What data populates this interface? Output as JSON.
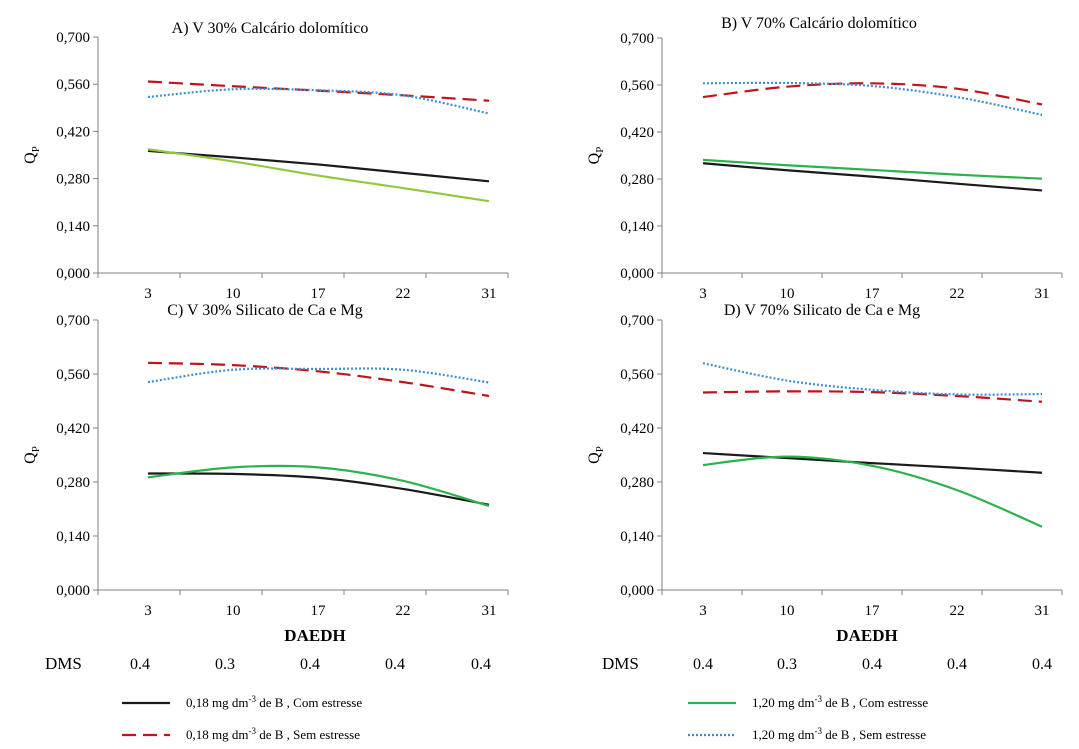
{
  "chart_data": [
    {
      "type": "line",
      "title": "A) V 30% Calcário dolomítico",
      "ylabel": "Q",
      "ylabel_sub": "P",
      "ylim": [
        0,
        0.7
      ],
      "yticks": [
        "0,000",
        "0,140",
        "0,280",
        "0,420",
        "0,560",
        "0,700"
      ],
      "categories": [
        "3",
        "10",
        "17",
        "22",
        "31"
      ],
      "series": [
        {
          "key": "b018_com",
          "values": [
            0.362,
            0.343,
            0.322,
            0.297,
            0.272
          ]
        },
        {
          "key": "b018_sem",
          "values": [
            0.568,
            0.554,
            0.541,
            0.527,
            0.511
          ]
        },
        {
          "key": "b120_com",
          "values": [
            0.367,
            0.331,
            0.289,
            0.252,
            0.213
          ]
        },
        {
          "key": "b120_sem",
          "values": [
            0.522,
            0.545,
            0.542,
            0.527,
            0.473
          ]
        }
      ]
    },
    {
      "type": "line",
      "title": "B) V 70% Calcário dolomítico",
      "ylabel": "Q",
      "ylabel_sub": "P",
      "ylim": [
        0,
        0.7
      ],
      "yticks": [
        "0,000",
        "0,140",
        "0,280",
        "0,420",
        "0,560",
        "0,700"
      ],
      "categories": [
        "3",
        "10",
        "17",
        "22",
        "31"
      ],
      "series": [
        {
          "key": "b018_com",
          "values": [
            0.327,
            0.306,
            0.287,
            0.266,
            0.246
          ]
        },
        {
          "key": "b018_sem",
          "values": [
            0.524,
            0.555,
            0.565,
            0.549,
            0.502
          ]
        },
        {
          "key": "b120_com",
          "values": [
            0.337,
            0.321,
            0.307,
            0.293,
            0.281
          ]
        },
        {
          "key": "b120_sem",
          "values": [
            0.565,
            0.566,
            0.557,
            0.524,
            0.471
          ]
        }
      ]
    },
    {
      "type": "line",
      "title": "C) V 30% Silicato de Ca e Mg",
      "ylabel": "Q",
      "ylabel_sub": "P",
      "ylim": [
        0,
        0.7
      ],
      "yticks": [
        "0,000",
        "0,140",
        "0,280",
        "0,420",
        "0,560",
        "0,700"
      ],
      "categories": [
        "3",
        "10",
        "17",
        "22",
        "31"
      ],
      "series": [
        {
          "key": "b018_com",
          "values": [
            0.302,
            0.301,
            0.291,
            0.262,
            0.221
          ]
        },
        {
          "key": "b018_sem",
          "values": [
            0.589,
            0.583,
            0.567,
            0.539,
            0.503
          ]
        },
        {
          "key": "b120_com",
          "values": [
            0.292,
            0.318,
            0.318,
            0.283,
            0.218
          ]
        },
        {
          "key": "b120_sem",
          "values": [
            0.539,
            0.571,
            0.573,
            0.571,
            0.538
          ]
        }
      ]
    },
    {
      "type": "line",
      "title": "D) V 70% Silicato de Ca e Mg",
      "ylabel": "Q",
      "ylabel_sub": "P",
      "ylim": [
        0,
        0.7
      ],
      "yticks": [
        "0,000",
        "0,140",
        "0,280",
        "0,420",
        "0,560",
        "0,700"
      ],
      "categories": [
        "3",
        "10",
        "17",
        "22",
        "31"
      ],
      "series": [
        {
          "key": "b018_com",
          "values": [
            0.355,
            0.342,
            0.329,
            0.317,
            0.304
          ]
        },
        {
          "key": "b018_sem",
          "values": [
            0.512,
            0.515,
            0.513,
            0.503,
            0.488
          ]
        },
        {
          "key": "b120_com",
          "values": [
            0.324,
            0.346,
            0.322,
            0.259,
            0.164
          ]
        },
        {
          "key": "b120_sem",
          "values": [
            0.588,
            0.543,
            0.519,
            0.507,
            0.508
          ]
        }
      ]
    }
  ],
  "xlabel": "DAEDH",
  "dms": {
    "label": "DMS",
    "left": [
      "0.4",
      "0.3",
      "0.4",
      "0.4",
      "0.4"
    ],
    "right": [
      "0.4",
      "0.3",
      "0.4",
      "0.4",
      "0.4"
    ]
  },
  "series_styles": {
    "b018_com": {
      "color": "#1a1a1a",
      "dash": ""
    },
    "b018_sem": {
      "color": "#c0141c",
      "dash": "14 7"
    },
    "b120_com": {
      "color": "#2bb34a",
      "dash": ""
    },
    "b120_com_panelA": {
      "color": "#92c83e",
      "dash": ""
    },
    "b120_sem": {
      "color": "#3b8fd4",
      "dash": "2 2"
    }
  },
  "legend": [
    {
      "key": "b018_com",
      "prefix": "0,18 mg dm",
      "sup": "-3",
      "suffix": " de B , Com estresse"
    },
    {
      "key": "b018_sem",
      "prefix": "0,18 mg dm",
      "sup": "-3",
      "suffix": " de B , Sem estresse"
    },
    {
      "key": "b120_com",
      "prefix": "1,20 mg dm",
      "sup": "-3",
      "suffix": " de B , Com estresse"
    },
    {
      "key": "b120_sem",
      "prefix": "1,20 mg dm",
      "sup": "-3",
      "suffix": " de B , Sem estresse"
    }
  ]
}
